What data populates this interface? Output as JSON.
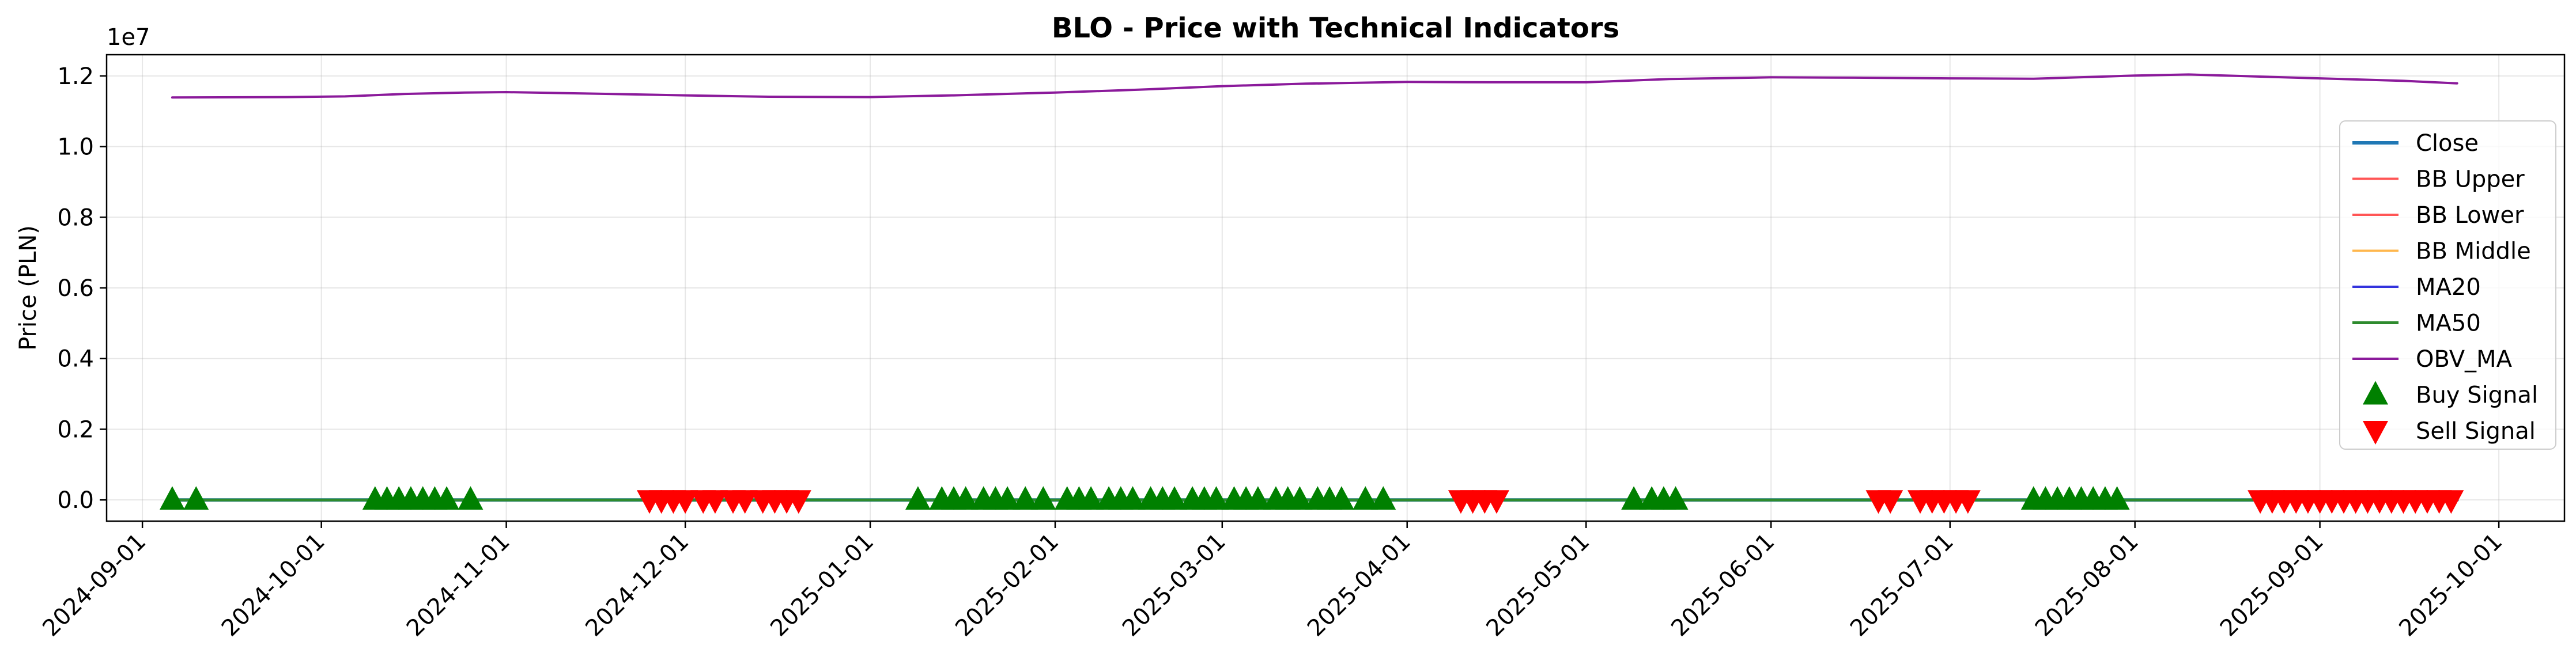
{
  "chart_data": {
    "type": "line",
    "title": "BLO - Price with Technical Indicators",
    "ylabel": "Price (PLN)",
    "xlabel": "",
    "y_scale_label": "1e7",
    "y_offset_exponent": 7,
    "ylim": [
      -600000,
      12600000
    ],
    "xlim": [
      "2024-08-26",
      "2025-10-12"
    ],
    "y_ticks": [
      0.0,
      0.2,
      0.4,
      0.6,
      0.8,
      1.0,
      1.2
    ],
    "y_tick_labels": [
      "0.0",
      "0.2",
      "0.4",
      "0.6",
      "0.8",
      "1.0",
      "1.2"
    ],
    "x_ticks": [
      "2024-09-01",
      "2024-10-01",
      "2024-11-01",
      "2024-12-01",
      "2025-01-01",
      "2025-02-01",
      "2025-03-01",
      "2025-04-01",
      "2025-05-01",
      "2025-06-01",
      "2025-07-01",
      "2025-08-01",
      "2025-09-01",
      "2025-10-01"
    ],
    "x_tick_labels": [
      "2024-09-01",
      "2024-10-01",
      "2024-11-01",
      "2024-12-01",
      "2025-01-01",
      "2025-02-01",
      "2025-03-01",
      "2025-04-01",
      "2025-05-01",
      "2025-06-01",
      "2025-07-01",
      "2025-08-01",
      "2025-09-01",
      "2025-10-01"
    ],
    "grid": true,
    "legend_position": "center-right",
    "series": [
      {
        "name": "Close",
        "color": "#1f77b4",
        "style": "line",
        "x": [
          "2024-09-06",
          "2025-09-24"
        ],
        "values": [
          15,
          15
        ]
      },
      {
        "name": "BB Upper",
        "color": "#ff5555",
        "style": "line",
        "x": [
          "2024-09-06",
          "2025-09-24"
        ],
        "values": [
          16,
          16
        ]
      },
      {
        "name": "BB Lower",
        "color": "#ff5555",
        "style": "line",
        "x": [
          "2024-09-06",
          "2025-09-24"
        ],
        "values": [
          14,
          14
        ]
      },
      {
        "name": "BB Middle",
        "color": "#ffb74d",
        "style": "line",
        "x": [
          "2024-09-06",
          "2025-09-24"
        ],
        "values": [
          15,
          15
        ]
      },
      {
        "name": "MA20",
        "color": "#3333dd",
        "style": "line",
        "x": [
          "2024-09-06",
          "2025-09-24"
        ],
        "values": [
          15,
          15
        ]
      },
      {
        "name": "MA50",
        "color": "#2e8b2e",
        "style": "line",
        "x": [
          "2024-09-06",
          "2025-09-24"
        ],
        "values": [
          15,
          15
        ]
      },
      {
        "name": "OBV_MA",
        "color": "#8b1a9b",
        "style": "line",
        "x": [
          "2024-09-06",
          "2024-09-25",
          "2024-10-05",
          "2024-10-15",
          "2024-10-25",
          "2024-11-01",
          "2024-11-15",
          "2024-12-01",
          "2024-12-15",
          "2025-01-01",
          "2025-01-15",
          "2025-02-01",
          "2025-02-15",
          "2025-03-01",
          "2025-03-15",
          "2025-04-01",
          "2025-04-15",
          "2025-05-01",
          "2025-05-15",
          "2025-06-01",
          "2025-06-15",
          "2025-07-01",
          "2025-07-15",
          "2025-08-01",
          "2025-08-10",
          "2025-08-20",
          "2025-09-01",
          "2025-09-15",
          "2025-09-24"
        ],
        "values": [
          11390000,
          11400000,
          11420000,
          11490000,
          11530000,
          11540000,
          11500000,
          11450000,
          11410000,
          11400000,
          11450000,
          11530000,
          11610000,
          11710000,
          11780000,
          11830000,
          11820000,
          11820000,
          11910000,
          11960000,
          11950000,
          11930000,
          11920000,
          12010000,
          12040000,
          11990000,
          11930000,
          11860000,
          11790000
        ]
      },
      {
        "name": "Buy Signal",
        "color": "#008000",
        "style": "marker-up",
        "y_value": 0,
        "x": [
          "2024-09-06",
          "2024-09-10",
          "2024-10-10",
          "2024-10-12",
          "2024-10-14",
          "2024-10-16",
          "2024-10-18",
          "2024-10-20",
          "2024-10-22",
          "2024-10-26",
          "2025-01-09",
          "2025-01-13",
          "2025-01-15",
          "2025-01-17",
          "2025-01-20",
          "2025-01-22",
          "2025-01-24",
          "2025-01-27",
          "2025-01-30",
          "2025-02-03",
          "2025-02-05",
          "2025-02-07",
          "2025-02-10",
          "2025-02-12",
          "2025-02-14",
          "2025-02-17",
          "2025-02-19",
          "2025-02-21",
          "2025-02-24",
          "2025-02-26",
          "2025-02-28",
          "2025-03-03",
          "2025-03-05",
          "2025-03-07",
          "2025-03-10",
          "2025-03-12",
          "2025-03-14",
          "2025-03-17",
          "2025-03-19",
          "2025-03-21",
          "2025-03-25",
          "2025-03-28",
          "2025-05-09",
          "2025-05-12",
          "2025-05-14",
          "2025-05-16",
          "2025-07-15",
          "2025-07-17",
          "2025-07-19",
          "2025-07-21",
          "2025-07-23",
          "2025-07-25",
          "2025-07-27",
          "2025-07-29"
        ]
      },
      {
        "name": "Sell Signal",
        "color": "#ff0000",
        "style": "marker-down",
        "y_value": 0,
        "x": [
          "2024-11-25",
          "2024-11-27",
          "2024-11-29",
          "2024-12-01",
          "2024-12-04",
          "2024-12-06",
          "2024-12-09",
          "2024-12-11",
          "2024-12-14",
          "2024-12-16",
          "2024-12-18",
          "2024-12-20",
          "2025-04-10",
          "2025-04-12",
          "2025-04-14",
          "2025-04-16",
          "2025-06-19",
          "2025-06-21",
          "2025-06-26",
          "2025-06-28",
          "2025-06-30",
          "2025-07-02",
          "2025-07-04",
          "2025-08-22",
          "2025-08-24",
          "2025-08-26",
          "2025-08-28",
          "2025-08-30",
          "2025-09-01",
          "2025-09-03",
          "2025-09-05",
          "2025-09-07",
          "2025-09-09",
          "2025-09-11",
          "2025-09-13",
          "2025-09-15",
          "2025-09-17",
          "2025-09-19",
          "2025-09-21",
          "2025-09-23"
        ]
      }
    ]
  }
}
